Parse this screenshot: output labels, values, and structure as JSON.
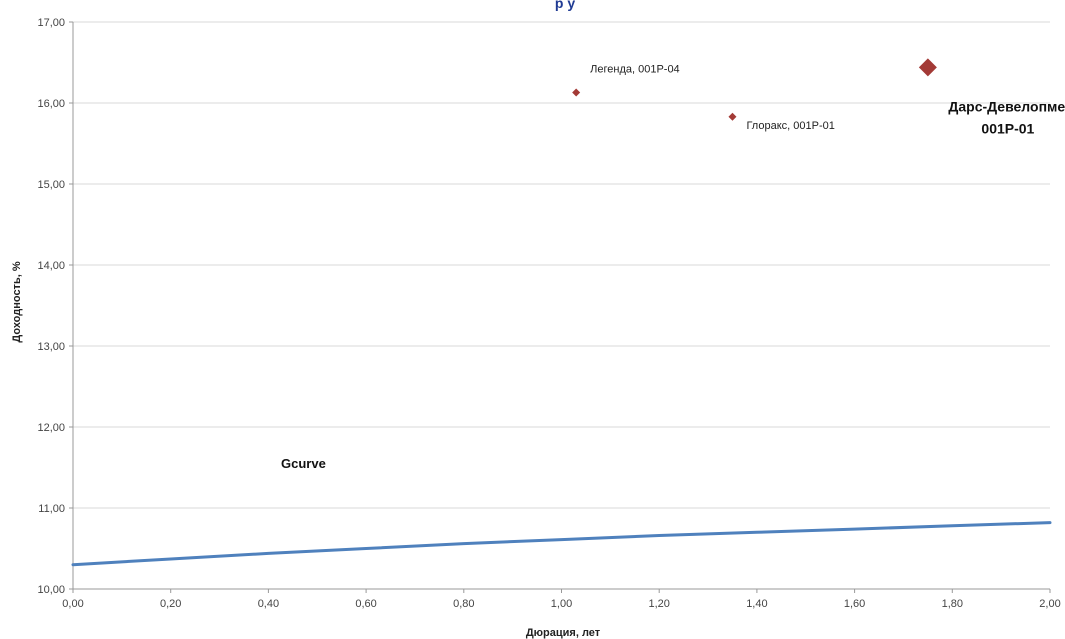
{
  "chart_data": {
    "type": "scatter",
    "title_fragment": "р     у",
    "xlabel": "Дюрация, лет",
    "ylabel": "Доходность, %",
    "xlim": [
      0,
      2
    ],
    "ylim": [
      10,
      17
    ],
    "x_ticks": [
      "0,00",
      "0,20",
      "0,40",
      "0,60",
      "0,80",
      "1,00",
      "1,20",
      "1,40",
      "1,60",
      "1,80",
      "2,00"
    ],
    "y_ticks": [
      "10,00",
      "11,00",
      "12,00",
      "13,00",
      "14,00",
      "15,00",
      "16,00",
      "17,00"
    ],
    "grid": "horizontal",
    "series": [
      {
        "name": "Gcurve",
        "kind": "line",
        "color": "#4f81bd",
        "x": [
          0.0,
          0.2,
          0.4,
          0.6,
          0.8,
          1.0,
          1.2,
          1.4,
          1.6,
          1.8,
          2.0
        ],
        "y": [
          10.3,
          10.37,
          10.44,
          10.5,
          10.56,
          10.61,
          10.66,
          10.7,
          10.74,
          10.78,
          10.82
        ]
      }
    ],
    "points": [
      {
        "label": "Легенда, 001Р-04",
        "x": 1.03,
        "y": 16.13,
        "color": "#a33a36",
        "size": "small"
      },
      {
        "label": "Глоракс, 001Р-01",
        "x": 1.35,
        "y": 15.83,
        "color": "#a33a36",
        "size": "small"
      },
      {
        "label_line1": "Дарс-Девелопмент,",
        "label_line2": "001Р-01",
        "x": 1.75,
        "y": 16.44,
        "color": "#a33a36",
        "size": "large"
      }
    ]
  }
}
